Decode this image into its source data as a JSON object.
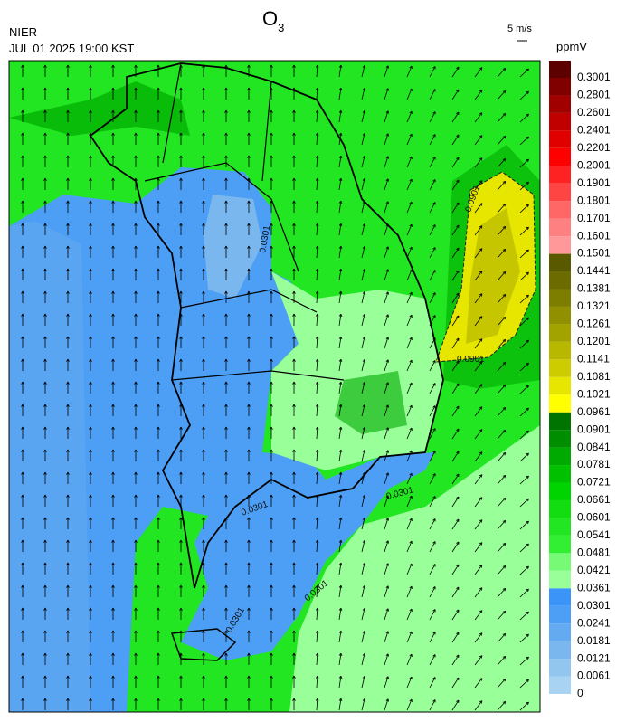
{
  "header": {
    "title": "O",
    "title_sub": "3",
    "source": "NIER",
    "time": "JUL 01 2025 19:00 KST",
    "vector_scale": "5 m/s",
    "unit": "ppmV"
  },
  "colorbar": {
    "ticks": [
      0,
      0.0061,
      0.0121,
      0.0181,
      0.0241,
      0.0301,
      0.0361,
      0.0421,
      0.0481,
      0.0541,
      0.0601,
      0.0661,
      0.0721,
      0.0781,
      0.0841,
      0.0901,
      0.0961,
      0.1021,
      0.1081,
      0.1141,
      0.1201,
      0.1261,
      0.1321,
      0.1381,
      0.1441,
      0.1501,
      0.1601,
      0.1701,
      0.1801,
      0.1901,
      0.2001,
      0.2201,
      0.2401,
      0.2601,
      0.2801,
      0.3001
    ],
    "colors": [
      "#a9d3f2",
      "#93c6ef",
      "#7ab7ee",
      "#64aaf0",
      "#4c9ff5",
      "#3b94f7",
      "#99ff99",
      "#77fb77",
      "#33ef33",
      "#22e622",
      "#11dd11",
      "#00d400",
      "#00c000",
      "#00aa00",
      "#008e00",
      "#007400",
      "#ffff00",
      "#e6e600",
      "#cccc00",
      "#b8b800",
      "#a3a300",
      "#909000",
      "#7d7d00",
      "#6b6b00",
      "#595900",
      "#ff9999",
      "#ff8080",
      "#ff6666",
      "#ff4444",
      "#ff2222",
      "#ff0000",
      "#e00000",
      "#c00000",
      "#a00000",
      "#800000",
      "#5c0000"
    ]
  },
  "contour_labels": [
    "0.0901",
    "0.0901",
    "0.0301",
    "0.0301",
    "0.0301",
    "0.0301",
    "0.0301"
  ]
}
